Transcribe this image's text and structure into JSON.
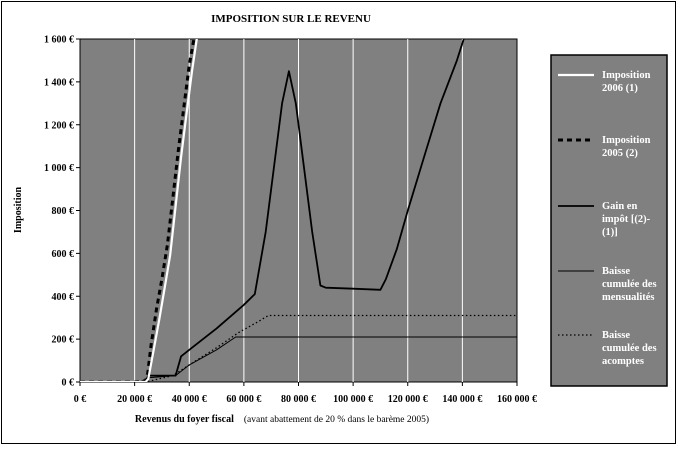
{
  "chart_data": {
    "type": "line",
    "title": "IMPOSITION SUR LE REVENU",
    "xlabel": "Revenus du foyer fiscal",
    "xlabel_note": "(avant abattement de 20 % dans le barème 2005)",
    "ylabel": "Imposition",
    "xlim": [
      0,
      160000
    ],
    "ylim": [
      0,
      1600
    ],
    "x_ticks": [
      0,
      20000,
      40000,
      60000,
      80000,
      100000,
      120000,
      140000,
      160000
    ],
    "x_tick_labels": [
      "0 €",
      "20 000 €",
      "40 000 €",
      "60 000 €",
      "80 000 €",
      "100 000 €",
      "120 000 €",
      "140 000 €",
      "160 000 €"
    ],
    "y_ticks": [
      0,
      200,
      400,
      600,
      800,
      1000,
      1200,
      1400,
      1600
    ],
    "y_tick_labels": [
      "0 €",
      "200 €",
      "400 €",
      "600 €",
      "800 €",
      "1 000 €",
      "1 200 €",
      "1 400 €",
      "1 600 €"
    ],
    "grid": "vertical",
    "legend_position": "right",
    "colors": {
      "plot_background": "#808080",
      "legend_background": "#808080",
      "grid": "#ffffff"
    },
    "series": [
      {
        "name": "Imposition 2006 (1)",
        "style": "solid-thick-white",
        "points": [
          [
            0,
            0
          ],
          [
            20000,
            0
          ],
          [
            24000,
            0
          ],
          [
            25000,
            15
          ],
          [
            27000,
            150
          ],
          [
            29000,
            290
          ],
          [
            31000,
            440
          ],
          [
            33000,
            590
          ],
          [
            35000,
            820
          ],
          [
            37000,
            1050
          ],
          [
            39000,
            1250
          ],
          [
            41000,
            1450
          ],
          [
            43000,
            1620
          ]
        ]
      },
      {
        "name": "Imposition 2005 (2)",
        "style": "dashed-thick-black",
        "points": [
          [
            0,
            0
          ],
          [
            20000,
            0
          ],
          [
            24000,
            5
          ],
          [
            24800,
            40
          ],
          [
            26000,
            170
          ],
          [
            28000,
            340
          ],
          [
            30000,
            480
          ],
          [
            32000,
            640
          ],
          [
            34000,
            860
          ],
          [
            36000,
            1080
          ],
          [
            38000,
            1280
          ],
          [
            40000,
            1480
          ],
          [
            42000,
            1620
          ]
        ]
      },
      {
        "name": "Gain en impôt [(2)-(1)]",
        "style": "solid-medium-black",
        "points": [
          [
            0,
            0
          ],
          [
            22000,
            0
          ],
          [
            24000,
            5
          ],
          [
            25000,
            30
          ],
          [
            33000,
            30
          ],
          [
            35000,
            30
          ],
          [
            37000,
            120
          ],
          [
            41000,
            160
          ],
          [
            50000,
            250
          ],
          [
            60000,
            360
          ],
          [
            64000,
            410
          ],
          [
            68000,
            700
          ],
          [
            71000,
            1000
          ],
          [
            74000,
            1300
          ],
          [
            76500,
            1450
          ],
          [
            79000,
            1300
          ],
          [
            82000,
            1000
          ],
          [
            85000,
            700
          ],
          [
            88000,
            450
          ],
          [
            90000,
            440
          ],
          [
            100000,
            435
          ],
          [
            110000,
            430
          ],
          [
            112000,
            480
          ],
          [
            116000,
            620
          ],
          [
            120000,
            800
          ],
          [
            126000,
            1050
          ],
          [
            132000,
            1300
          ],
          [
            138000,
            1500
          ],
          [
            141000,
            1620
          ]
        ]
      },
      {
        "name": "Baisse cumulée des mensualités",
        "style": "solid-thin-black",
        "points": [
          [
            0,
            0
          ],
          [
            22000,
            0
          ],
          [
            25000,
            20
          ],
          [
            35000,
            30
          ],
          [
            40000,
            80
          ],
          [
            50000,
            150
          ],
          [
            57000,
            210
          ],
          [
            160000,
            210
          ]
        ]
      },
      {
        "name": "Baisse cumulée des acomptes",
        "style": "dotted-black",
        "points": [
          [
            0,
            0
          ],
          [
            24000,
            0
          ],
          [
            34000,
            30
          ],
          [
            40000,
            80
          ],
          [
            50000,
            160
          ],
          [
            58000,
            230
          ],
          [
            65000,
            280
          ],
          [
            69000,
            310
          ],
          [
            160000,
            310
          ]
        ]
      }
    ]
  }
}
